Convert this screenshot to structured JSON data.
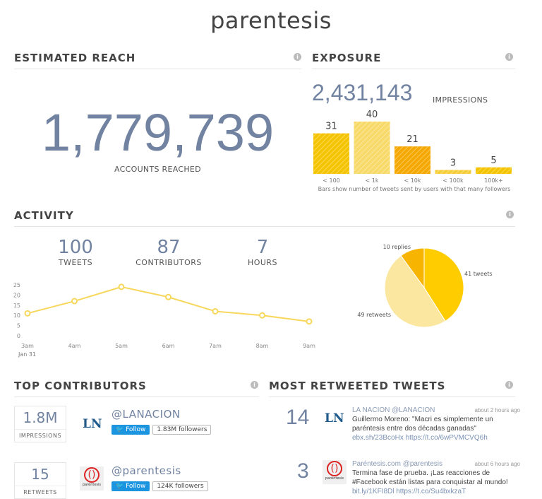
{
  "title": "parentesis",
  "reach": {
    "heading": "ESTIMATED REACH",
    "value": "1,779,739",
    "label": "ACCOUNTS REACHED"
  },
  "exposure": {
    "heading": "EXPOSURE",
    "value": "2,431,143",
    "label": "IMPRESSIONS",
    "caption": "Bars show number of tweets sent by users with that many followers"
  },
  "activity": {
    "heading": "ACTIVITY",
    "stats": [
      {
        "value": "100",
        "label": "TWEETS"
      },
      {
        "value": "87",
        "label": "CONTRIBUTORS"
      },
      {
        "value": "7",
        "label": "HOURS"
      }
    ],
    "date_label": "Jan 31"
  },
  "chart_data": [
    {
      "type": "bar",
      "categories": [
        "< 100",
        "< 1k",
        "< 10k",
        "< 100k",
        "100k+"
      ],
      "values": [
        31,
        40,
        21,
        3,
        5
      ],
      "colors": [
        "#f5c400",
        "#f7da6a",
        "#f5a800",
        "#f7cd3a",
        "#f5c400"
      ]
    },
    {
      "type": "line",
      "x": [
        "3am",
        "4am",
        "5am",
        "6am",
        "7am",
        "8am",
        "9am"
      ],
      "values": [
        11,
        17,
        24,
        19,
        12,
        10,
        7
      ],
      "yticks": [
        0,
        5,
        10,
        15,
        20,
        25
      ],
      "ylim": [
        0,
        25
      ],
      "color": "#f7d75c"
    },
    {
      "type": "pie",
      "slices": [
        {
          "label": "41 tweets",
          "value": 41,
          "color": "#ffcc00"
        },
        {
          "label": "49 retweets",
          "value": 49,
          "color": "#fbe7a0"
        },
        {
          "label": "10 replies",
          "value": 10,
          "color": "#f7b400"
        }
      ]
    }
  ],
  "contributors": {
    "heading": "TOP CONTRIBUTORS",
    "items": [
      {
        "value": "1.8M",
        "label": "IMPRESSIONS",
        "handle": "LANACION",
        "follow": "Follow",
        "followers": "1.83M followers",
        "logo": "LN"
      },
      {
        "value": "15",
        "label": "RETWEETS",
        "handle": "parentesis",
        "follow": "Follow",
        "followers": "124K followers",
        "logo": "paréntesis"
      }
    ]
  },
  "retweeted": {
    "heading": "MOST RETWEETED TWEETS",
    "items": [
      {
        "count": "14",
        "author": "LA NACION @LANACION",
        "time": "about 2 hours ago",
        "text": "Guillermo Moreno: \"Macri es simplemente un paréntesis entre dos décadas ganadas\"",
        "links": "ebx.sh/23BcoHx https://t.co/6wPVMCVQ6h",
        "logo": "LN"
      },
      {
        "count": "3",
        "author": "Paréntesis.com @parentesis",
        "time": "about 6 hours ago",
        "text": "Termina fase de prueba. ¡Las reacciones de #Facebook están listas para conquistar al mundo!",
        "links": "bit.ly/1KFI8Dl https://t.co/Su4bxkzaT",
        "logo": "paréntesis"
      }
    ]
  }
}
